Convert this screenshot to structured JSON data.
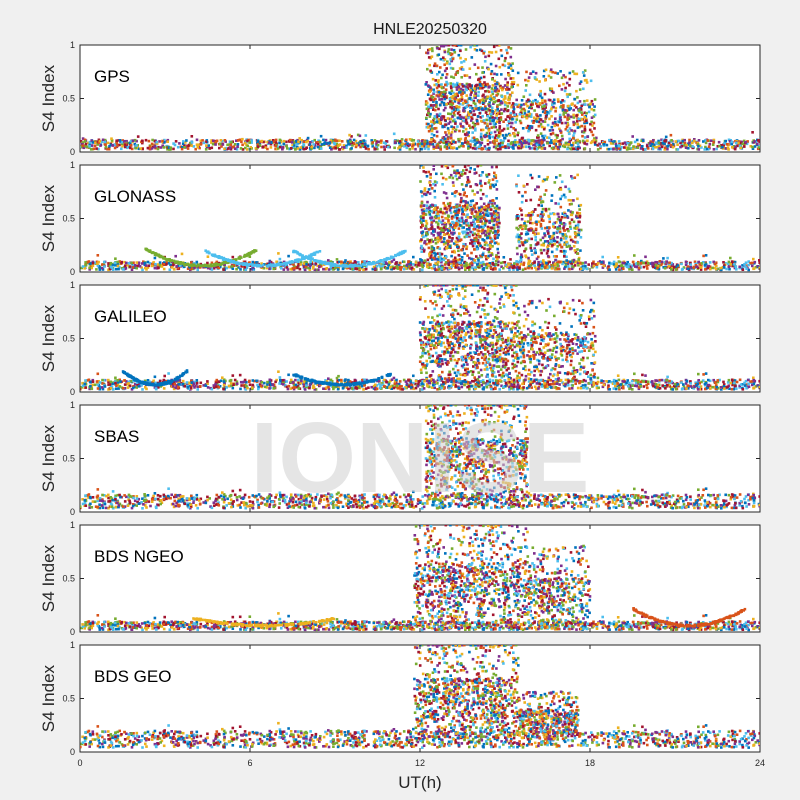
{
  "chart_data": {
    "type": "scatter",
    "title": "HNLE20250320",
    "xlabel": "UT(h)",
    "ylabel": "S4 Index",
    "xlim": [
      0,
      24
    ],
    "ylim": [
      0,
      1
    ],
    "x_ticks": [
      "0",
      "6",
      "12",
      "18",
      "24"
    ],
    "y_ticks": [
      "0",
      "0.5",
      "1"
    ],
    "watermark": "IONISE",
    "grid": false,
    "series_colors": [
      "#0072BD",
      "#D95319",
      "#EDB120",
      "#7E2F8E",
      "#77AC30",
      "#4DBEEE",
      "#A2142F"
    ],
    "panels": [
      {
        "name": "GPS",
        "quiet_level": 0.07,
        "bursts": [
          {
            "start": 12.2,
            "end": 15.3,
            "peak": 0.95
          },
          {
            "start": 15.3,
            "end": 18.2,
            "peak": 0.7
          }
        ],
        "arcs": []
      },
      {
        "name": "GLONASS",
        "quiet_level": 0.06,
        "bursts": [
          {
            "start": 12.0,
            "end": 14.8,
            "peak": 0.95
          },
          {
            "start": 15.4,
            "end": 17.7,
            "peak": 0.85
          }
        ],
        "arcs": [
          {
            "start": 2.3,
            "end": 6.3,
            "peak": 0.22,
            "color": 4
          },
          {
            "start": 4.4,
            "end": 8.5,
            "peak": 0.2,
            "color": 5
          },
          {
            "start": 7.5,
            "end": 11.5,
            "peak": 0.2,
            "color": 5
          }
        ]
      },
      {
        "name": "GALILEO",
        "quiet_level": 0.07,
        "bursts": [
          {
            "start": 12.0,
            "end": 15.5,
            "peak": 0.98
          },
          {
            "start": 15.5,
            "end": 18.2,
            "peak": 0.8
          }
        ],
        "arcs": [
          {
            "start": 1.5,
            "end": 3.8,
            "peak": 0.2,
            "color": 0
          },
          {
            "start": 7.5,
            "end": 11.0,
            "peak": 0.17,
            "color": 0
          }
        ]
      },
      {
        "name": "SBAS",
        "quiet_level": 0.1,
        "bursts": [
          {
            "start": 12.2,
            "end": 15.8,
            "peak": 0.98
          }
        ],
        "arcs": []
      },
      {
        "name": "BDS NGEO",
        "quiet_level": 0.06,
        "bursts": [
          {
            "start": 11.8,
            "end": 15.8,
            "peak": 0.98
          },
          {
            "start": 15.8,
            "end": 18.0,
            "peak": 0.75
          }
        ],
        "arcs": [
          {
            "start": 4.0,
            "end": 9.0,
            "peak": 0.13,
            "color": 2
          },
          {
            "start": 19.5,
            "end": 23.5,
            "peak": 0.22,
            "color": 1
          }
        ]
      },
      {
        "name": "BDS GEO",
        "quiet_level": 0.12,
        "bursts": [
          {
            "start": 11.8,
            "end": 15.5,
            "peak": 0.95
          },
          {
            "start": 15.5,
            "end": 17.6,
            "peak": 0.45
          }
        ],
        "arcs": []
      }
    ]
  }
}
